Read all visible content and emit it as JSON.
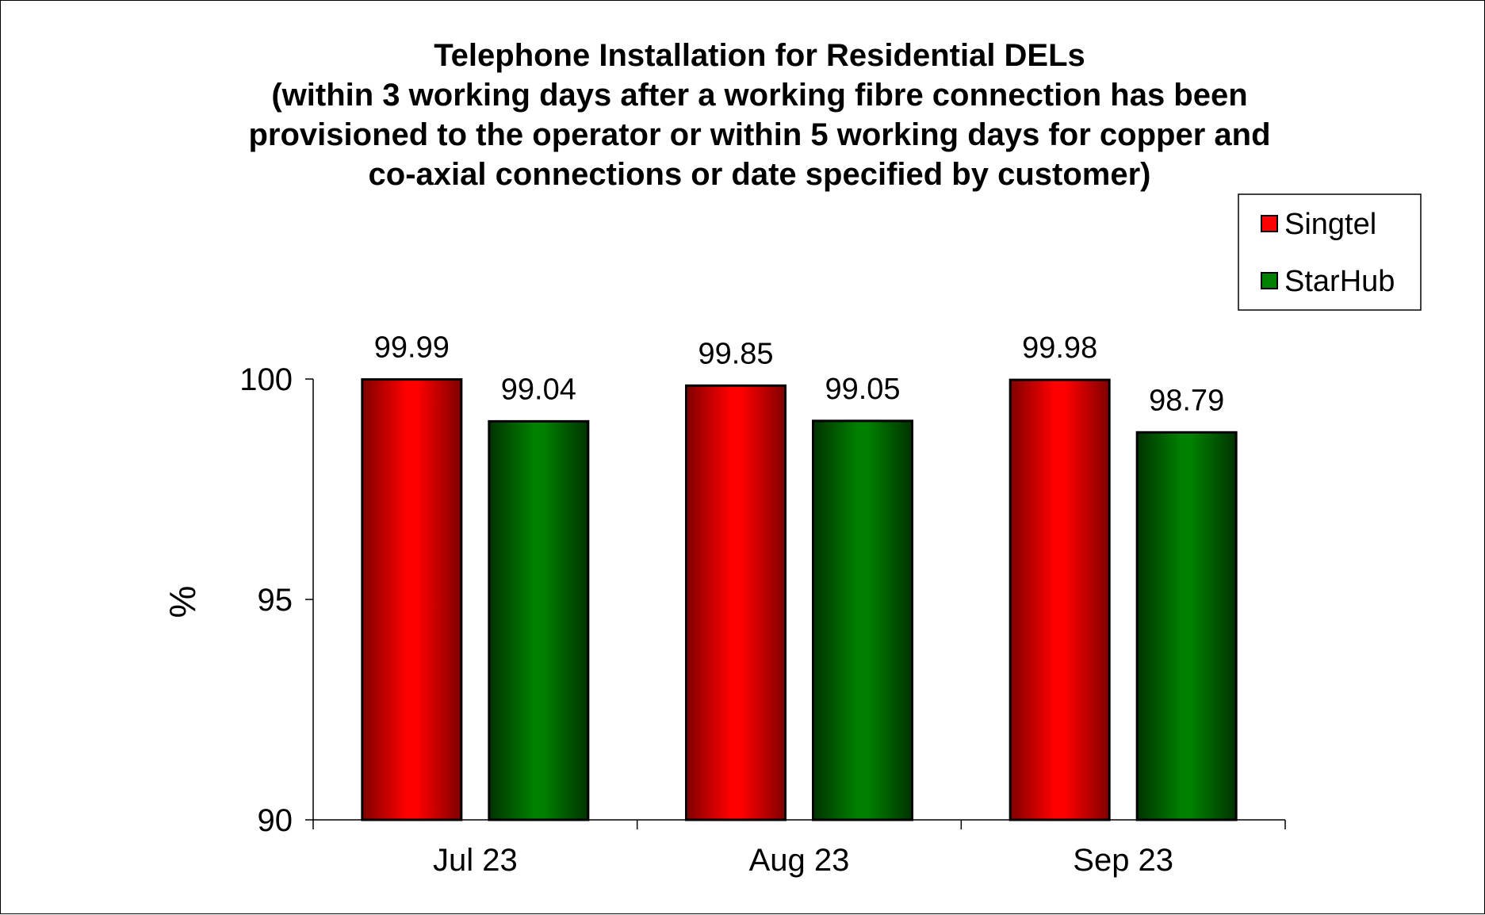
{
  "chart_data": {
    "type": "bar",
    "title_lines": [
      "Telephone Installation for Residential DELs",
      "(within 3 working days after a working fibre connection has been",
      "provisioned to the operator or within 5 working days for copper and",
      "co-axial connections or date specified by customer)"
    ],
    "ylabel": "%",
    "xlabel": "",
    "categories": [
      "Jul 23",
      "Aug 23",
      "Sep 23"
    ],
    "series": [
      {
        "name": "Singtel",
        "values": [
          99.99,
          99.85,
          99.98
        ],
        "color": "#ff0000",
        "dark": "#800000"
      },
      {
        "name": "StarHub",
        "values": [
          99.04,
          99.05,
          98.79
        ],
        "color": "#008000",
        "dark": "#003300"
      }
    ],
    "data_labels": [
      [
        "99.99",
        "99.85",
        "99.98"
      ],
      [
        "99.04",
        "99.05",
        "98.79"
      ]
    ],
    "ylim": [
      90,
      100
    ],
    "yticks": [
      90,
      95,
      100
    ],
    "ytick_labels": [
      "90",
      "95",
      "100"
    ],
    "grid": false,
    "legend_position": "top-right"
  }
}
